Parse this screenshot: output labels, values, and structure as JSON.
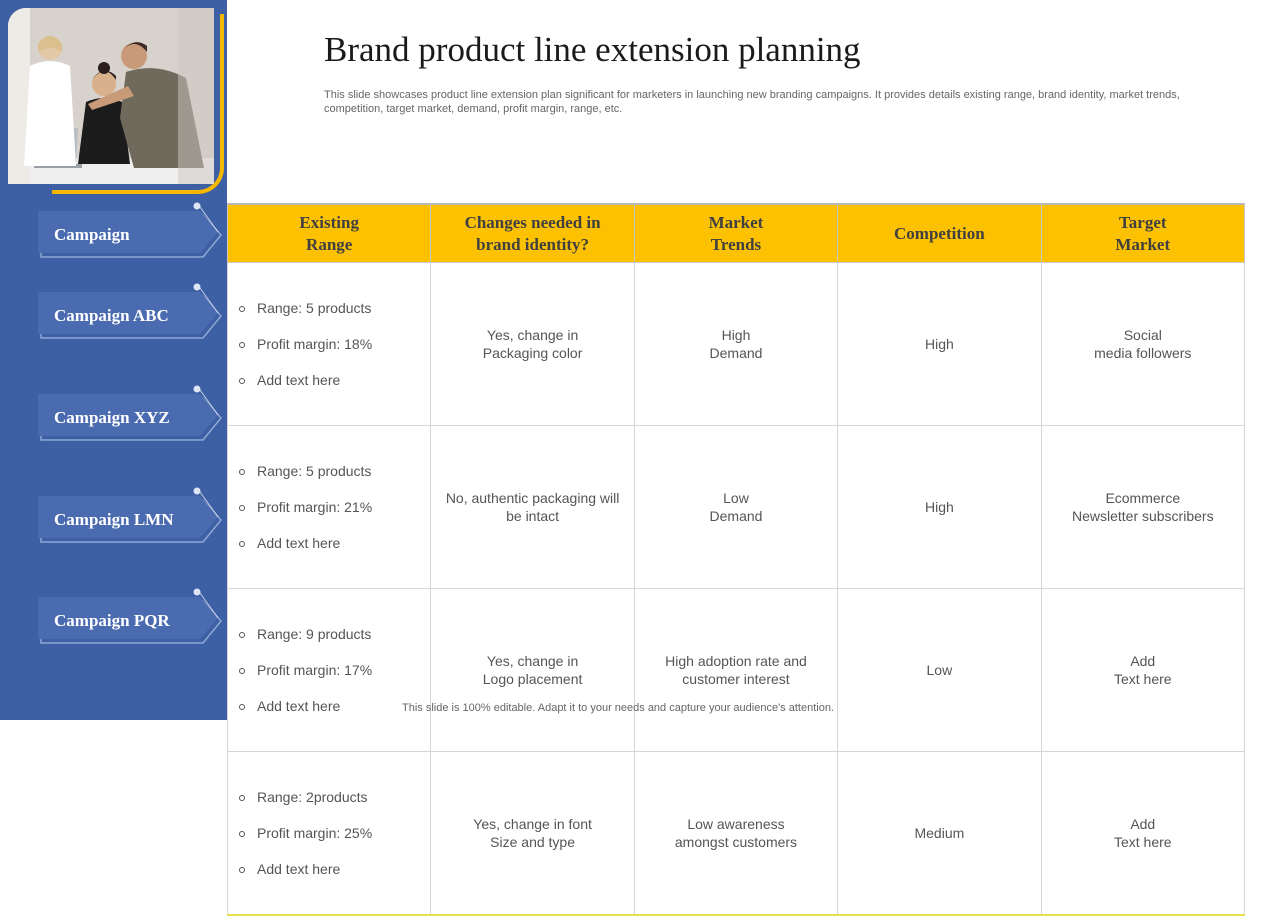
{
  "slide": {
    "title": "Brand product line extension planning",
    "subtitle": "This slide showcases product line extension plan significant for marketers in launching new branding campaigns. It provides details existing range, brand identity, market trends, competition, target market, demand, profit margin, range, etc.",
    "footer": "This slide is 100% editable. Adapt it to your needs and capture your audience's attention."
  },
  "colors": {
    "sidebar": "#3d5fa3",
    "header_fill": "#fcc100",
    "accent_frame": "#f5b800",
    "campaign_fill": "#4a6bb0"
  },
  "sidebar": {
    "campaigns": [
      {
        "label": "Campaign"
      },
      {
        "label": "Campaign ABC"
      },
      {
        "label": "Campaign XYZ"
      },
      {
        "label": "Campaign LMN"
      },
      {
        "label": "Campaign PQR"
      }
    ]
  },
  "table": {
    "headers": [
      "Existing\nRange",
      "Changes needed in\nbrand identity?",
      "Market\nTrends",
      "Competition",
      "Target\nMarket"
    ],
    "rows": [
      {
        "range": [
          "Range: 5 products",
          "Profit margin: 18%",
          "Add text here"
        ],
        "identity": "Yes, change in\nPackaging color",
        "trends": "High\nDemand",
        "competition": "High",
        "target": "Social\nmedia followers"
      },
      {
        "range": [
          "Range: 5 products",
          "Profit margin: 21%",
          "Add text here"
        ],
        "identity": "No, authentic packaging will be intact",
        "trends": "Low\nDemand",
        "competition": "High",
        "target": "Ecommerce\nNewsletter subscribers"
      },
      {
        "range": [
          "Range: 9 products",
          "Profit margin: 17%",
          "Add text here"
        ],
        "identity": "Yes, change in\nLogo placement",
        "trends": "High adoption rate and customer interest",
        "competition": "Low",
        "target": "Add\nText here"
      },
      {
        "range": [
          "Range: 2products",
          "Profit margin: 25%",
          "Add text here"
        ],
        "identity": "Yes, change in font\nSize and type",
        "trends": "Low awareness\namongst customers",
        "competition": "Medium",
        "target": "Add\nText here"
      }
    ]
  }
}
